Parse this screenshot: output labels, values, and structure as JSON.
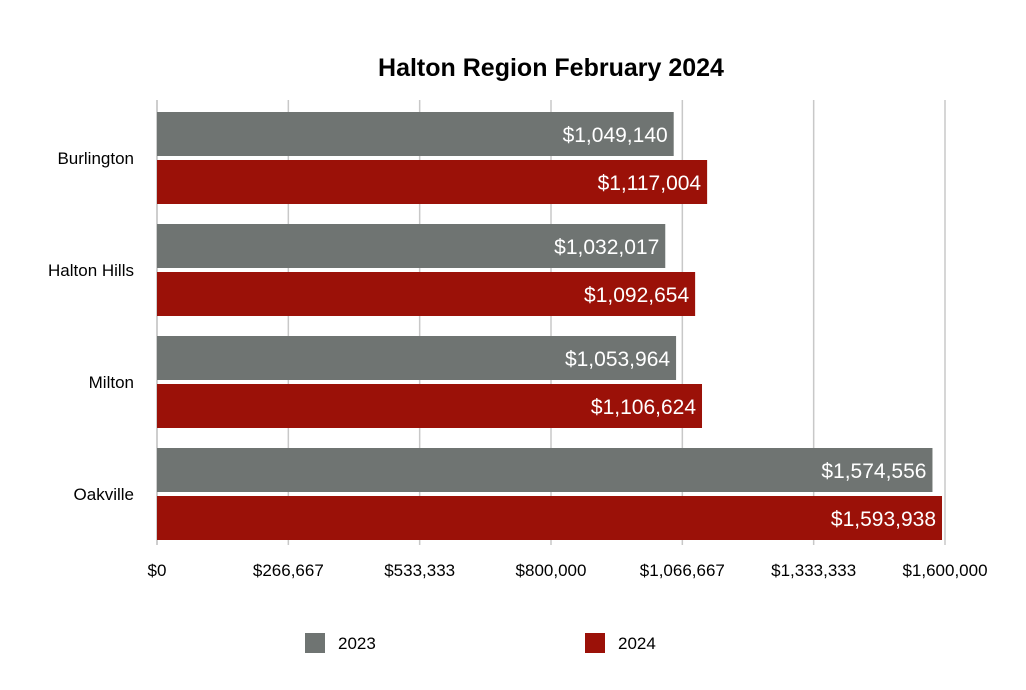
{
  "chart_data": {
    "type": "bar",
    "orientation": "horizontal",
    "title": "Halton Region February 2024",
    "xlabel": "",
    "ylabel": "",
    "categories": [
      "Burlington",
      "Halton Hills",
      "Milton",
      "Oakville"
    ],
    "series": [
      {
        "name": "2023",
        "color": "#6f7472",
        "values": [
          1049140,
          1032017,
          1053964,
          1574556
        ],
        "labels": [
          "$1,049,140",
          "$1,032,017",
          "$1,053,964",
          "$1,574,556"
        ]
      },
      {
        "name": "2024",
        "color": "#9b1108",
        "values": [
          1117004,
          1092654,
          1106624,
          1593938
        ],
        "labels": [
          "$1,117,004",
          "$1,092,654",
          "$1,106,624",
          "$1,593,938"
        ]
      }
    ],
    "xlim": [
      0,
      1600000
    ],
    "ticks": [
      0,
      266667,
      533333,
      800000,
      1066667,
      1333333,
      1600000
    ],
    "tick_labels": [
      "$0",
      "$266,667",
      "$533,333",
      "$800,000",
      "$1,066,667",
      "$1,333,333",
      "$1,600,000"
    ],
    "grid": true,
    "legend_position": "bottom"
  }
}
